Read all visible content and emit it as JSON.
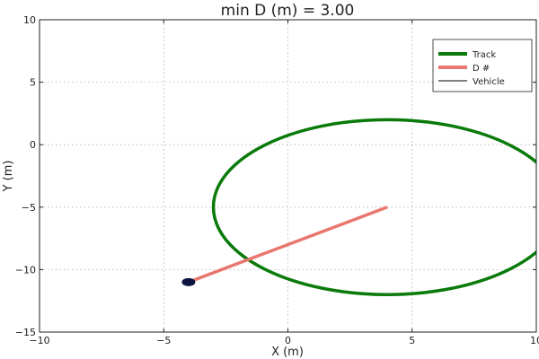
{
  "chart_data": {
    "type": "line",
    "title": "min D (m) = 3.00",
    "xlabel": "X (m)",
    "ylabel": "Y (m)",
    "xlim": [
      -10,
      10
    ],
    "ylim": [
      -15,
      10
    ],
    "xticks": [
      -10,
      -5,
      0,
      5,
      10
    ],
    "yticks": [
      -15,
      -10,
      -5,
      0,
      5,
      10
    ],
    "xtick_labels": [
      "−10",
      "−5",
      "0",
      "5",
      "10"
    ],
    "ytick_labels": [
      "−15",
      "−10",
      "−5",
      "0",
      "5",
      "10"
    ],
    "grid": true,
    "legend_position": "top-right",
    "series": [
      {
        "name": "Track",
        "kind": "ellipse",
        "center": [
          4,
          -5
        ],
        "radius_x": 7,
        "radius_y": 7,
        "color": "#0a7a0a"
      },
      {
        "name": "D #",
        "kind": "segment",
        "x": [
          -4,
          4
        ],
        "y": [
          -11,
          -5
        ],
        "color": "#e8776f"
      },
      {
        "name": "Vehicle",
        "kind": "marker",
        "x": [
          -4
        ],
        "y": [
          -11
        ],
        "color": "#0b1540"
      }
    ]
  }
}
